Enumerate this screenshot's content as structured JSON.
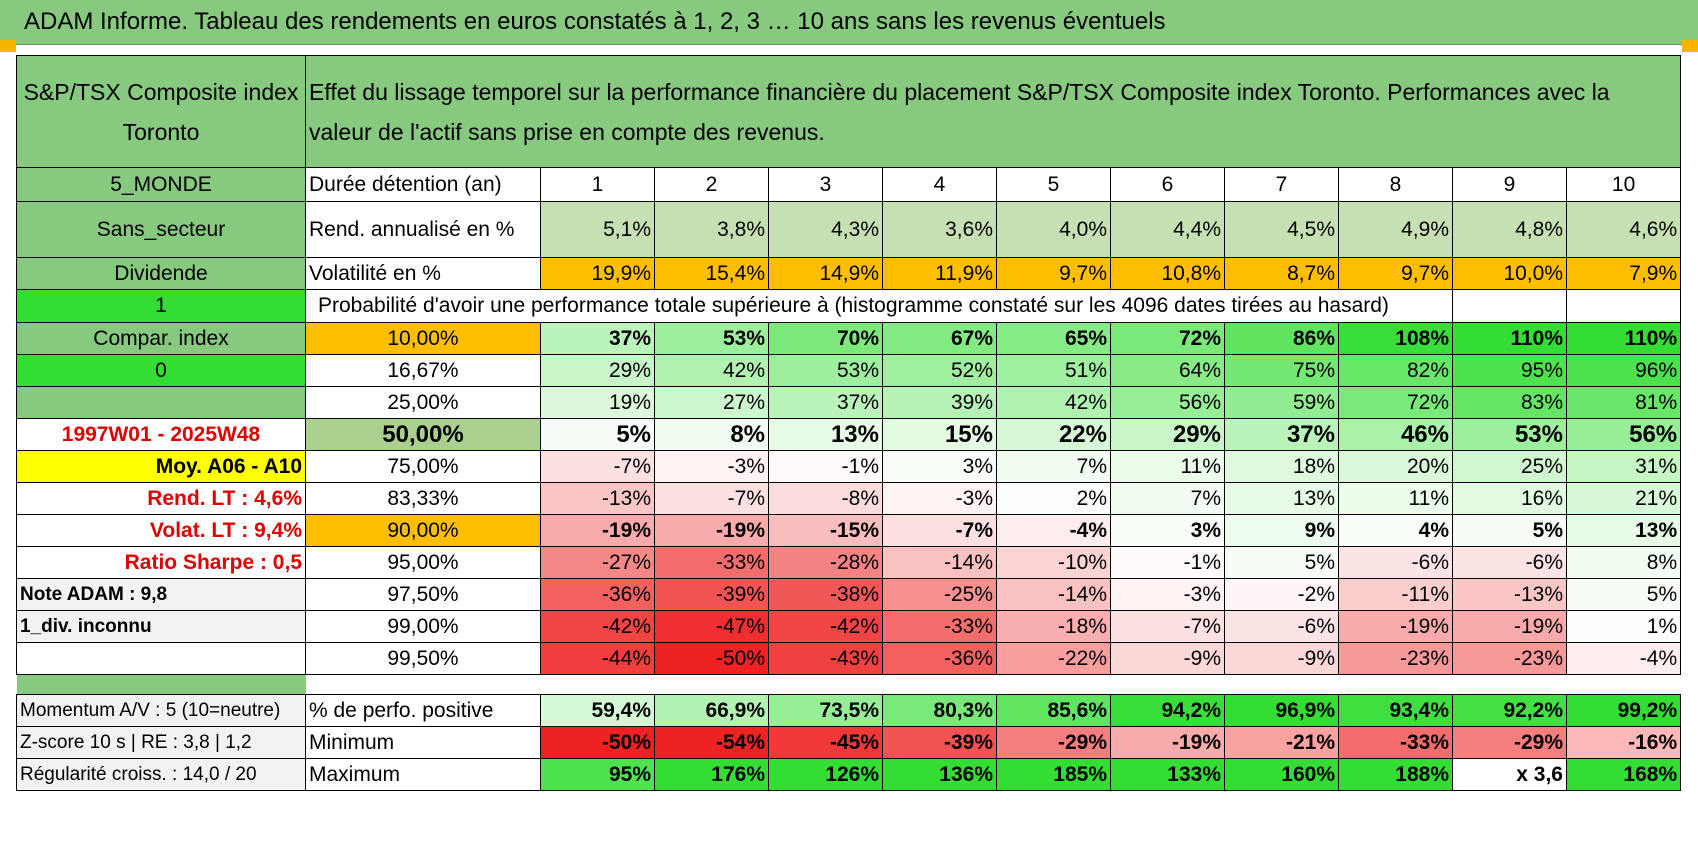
{
  "title": "ADAM Informe. Tableau des rendements en euros constatés à 1, 2, 3 … 10 ans sans les revenus éventuels",
  "header": {
    "left": "S&P/TSX Composite index Toronto",
    "right": "Effet du lissage temporel sur la performance financière du placement S&P/TSX Composite index Toronto. Performances avec la valeur de l'actif sans prise en compte des revenus."
  },
  "side": {
    "s0": "5_MONDE",
    "s1": "Sans_secteur",
    "s2": "Dividende",
    "s3": "1",
    "s4": "Compar. index",
    "s5": "0",
    "s6": "",
    "s7": "1997W01 - 2025W48",
    "s8": "Moy. A06 - A10",
    "s9": "Rend. LT :    4,6%",
    "s10": "Volat. LT :    9,4%",
    "s11": "Ratio Sharpe :     0,5",
    "s12": "Note ADAM : 9,8",
    "s13": "1_div. inconnu",
    "s14": "",
    "b0": "Momentum A/V : 5 (10=neutre)",
    "b1": "Z-score 10 s | RE : 3,8 | 1,2",
    "b2": "Régularité croiss. : 14,0 / 20"
  },
  "labels": {
    "years": "Durée détention (an)",
    "rend": "Rend. annualisé en %",
    "vol": "Volatilité en %",
    "proba": "Probabilité d'avoir une performance totale supérieure à (histogramme constaté sur les 4096 dates tirées au hasard)",
    "pos": "% de perfo. positive",
    "min": "Minimum",
    "max": "Maximum"
  },
  "years": [
    "1",
    "2",
    "3",
    "4",
    "5",
    "6",
    "7",
    "8",
    "9",
    "10"
  ],
  "rend": [
    "5,1%",
    "3,8%",
    "4,3%",
    "3,6%",
    "4,0%",
    "4,4%",
    "4,5%",
    "4,9%",
    "4,8%",
    "4,6%"
  ],
  "vol": [
    "19,9%",
    "15,4%",
    "14,9%",
    "11,9%",
    "9,7%",
    "10,8%",
    "8,7%",
    "9,7%",
    "10,0%",
    "7,9%"
  ],
  "prob_rows": [
    {
      "label": "10,00%",
      "vals": [
        "37%",
        "53%",
        "70%",
        "67%",
        "65%",
        "72%",
        "86%",
        "108%",
        "110%",
        "110%"
      ]
    },
    {
      "label": "16,67%",
      "vals": [
        "29%",
        "42%",
        "53%",
        "52%",
        "51%",
        "64%",
        "75%",
        "82%",
        "95%",
        "96%"
      ]
    },
    {
      "label": "25,00%",
      "vals": [
        "19%",
        "27%",
        "37%",
        "39%",
        "42%",
        "56%",
        "59%",
        "72%",
        "83%",
        "81%"
      ]
    },
    {
      "label": "50,00%",
      "vals": [
        "5%",
        "8%",
        "13%",
        "15%",
        "22%",
        "29%",
        "37%",
        "46%",
        "53%",
        "56%"
      ]
    },
    {
      "label": "75,00%",
      "vals": [
        "-7%",
        "-3%",
        "-1%",
        "3%",
        "7%",
        "11%",
        "18%",
        "20%",
        "25%",
        "31%"
      ]
    },
    {
      "label": "83,33%",
      "vals": [
        "-13%",
        "-7%",
        "-8%",
        "-3%",
        "2%",
        "7%",
        "13%",
        "11%",
        "16%",
        "21%"
      ]
    },
    {
      "label": "90,00%",
      "vals": [
        "-19%",
        "-19%",
        "-15%",
        "-7%",
        "-4%",
        "3%",
        "9%",
        "4%",
        "5%",
        "13%"
      ]
    },
    {
      "label": "95,00%",
      "vals": [
        "-27%",
        "-33%",
        "-28%",
        "-14%",
        "-10%",
        "-1%",
        "5%",
        "-6%",
        "-6%",
        "8%"
      ]
    },
    {
      "label": "97,50%",
      "vals": [
        "-36%",
        "-39%",
        "-38%",
        "-25%",
        "-14%",
        "-3%",
        "-2%",
        "-11%",
        "-13%",
        "5%"
      ]
    },
    {
      "label": "99,00%",
      "vals": [
        "-42%",
        "-47%",
        "-42%",
        "-33%",
        "-18%",
        "-7%",
        "-6%",
        "-19%",
        "-19%",
        "1%"
      ]
    },
    {
      "label": "99,50%",
      "vals": [
        "-44%",
        "-50%",
        "-43%",
        "-36%",
        "-22%",
        "-9%",
        "-9%",
        "-23%",
        "-23%",
        "-4%"
      ]
    }
  ],
  "pos": [
    "59,4%",
    "66,9%",
    "73,5%",
    "80,3%",
    "85,6%",
    "94,2%",
    "96,9%",
    "93,4%",
    "92,2%",
    "99,2%"
  ],
  "min": [
    "-50%",
    "-54%",
    "-45%",
    "-39%",
    "-29%",
    "-19%",
    "-21%",
    "-33%",
    "-29%",
    "-16%"
  ],
  "max": [
    "95%",
    "176%",
    "126%",
    "136%",
    "185%",
    "133%",
    "160%",
    "188%",
    "x 3,6",
    "168%"
  ],
  "colors": {
    "header_green": "#86c97f",
    "light_green": "#c6e0b4",
    "lime": "#33dd33",
    "yellow": "#ffff00",
    "orange": "#ffbf00",
    "side_red_text": "#e00000"
  }
}
